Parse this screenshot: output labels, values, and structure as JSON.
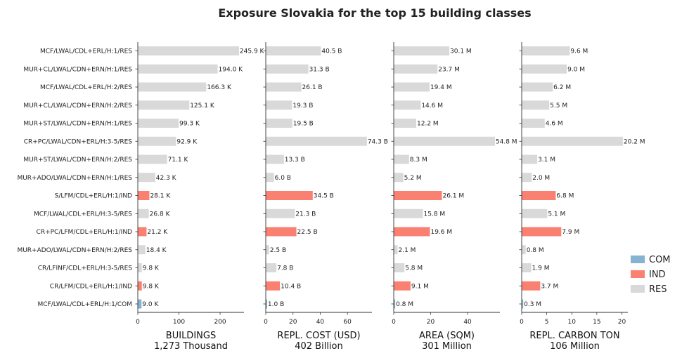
{
  "chart_data": {
    "type": "bar",
    "orientation": "horizontal",
    "title": "Exposure Slovakia for the top 15 building classes",
    "categories": [
      "MCF/LWAL/CDL+ERL/H:1/RES",
      "MUR+CL/LWAL/CDN+ERN/H:1/RES",
      "MCF/LWAL/CDL+ERL/H:2/RES",
      "MUR+CL/LWAL/CDN+ERN/H:2/RES",
      "MUR+ST/LWAL/CDN+ERN/H:1/RES",
      "CR+PC/LWAL/CDN+ERL/H:3-5/RES",
      "MUR+ST/LWAL/CDN+ERN/H:2/RES",
      "MUR+ADO/LWAL/CDN+ERN/H:1/RES",
      "S/LFM/CDL+ERL/H:1/IND",
      "MCF/LWAL/CDL+ERL/H:3-5/RES",
      "CR+PC/LFM/CDL+ERL/H:1/IND",
      "MUR+ADO/LWAL/CDN+ERN/H:2/RES",
      "CR/LFINF/CDL+ERL/H:3-5/RES",
      "CR/LFM/CDL+ERL/H:1/IND",
      "MCF/LWAL/CDL+ERL/H:1/COM"
    ],
    "occupancy": [
      "RES",
      "RES",
      "RES",
      "RES",
      "RES",
      "RES",
      "RES",
      "RES",
      "IND",
      "RES",
      "IND",
      "RES",
      "RES",
      "IND",
      "COM"
    ],
    "legend": {
      "placement": "lower-right",
      "entries": [
        {
          "name": "COM",
          "color": "#86b3d1"
        },
        {
          "name": "IND",
          "color": "#fa8072"
        },
        {
          "name": "RES",
          "color": "#d9d9d9"
        }
      ]
    },
    "panels": [
      {
        "xlabel": "BUILDINGS",
        "total": "1,273 Thousand",
        "xlim": [
          0,
          258
        ],
        "ticks": [
          0,
          100,
          200
        ],
        "values": [
          245.9,
          194.0,
          166.3,
          125.1,
          99.3,
          92.9,
          71.1,
          42.3,
          28.1,
          26.8,
          21.2,
          18.4,
          9.8,
          9.8,
          9.0
        ],
        "labels": [
          "245.9 K",
          "194.0 K",
          "166.3 K",
          "125.1 K",
          "99.3 K",
          "92.9 K",
          "71.1 K",
          "42.3 K",
          "28.1 K",
          "26.8 K",
          "21.2 K",
          "18.4 K",
          "9.8 K",
          "9.8 K",
          "9.0 K"
        ]
      },
      {
        "xlabel": "REPL. COST (USD)",
        "total": "402 Billion",
        "xlim": [
          0,
          78
        ],
        "ticks": [
          0,
          20,
          40,
          60
        ],
        "values": [
          40.5,
          31.3,
          26.1,
          19.3,
          19.5,
          74.3,
          13.3,
          6.0,
          34.5,
          21.3,
          22.5,
          2.5,
          7.8,
          10.4,
          1.0
        ],
        "labels": [
          "40.5 B",
          "31.3 B",
          "26.1 B",
          "19.3 B",
          "19.5 B",
          "74.3 B",
          "13.3 B",
          "6.0 B",
          "34.5 B",
          "21.3 B",
          "22.5 B",
          "2.5 B",
          "7.8 B",
          "10.4 B",
          "1.0 B"
        ]
      },
      {
        "xlabel": "AREA (SQM)",
        "total": "301 Million",
        "xlim": [
          0,
          57.5
        ],
        "ticks": [
          0,
          20,
          40
        ],
        "values": [
          30.1,
          23.7,
          19.4,
          14.6,
          12.2,
          54.8,
          8.3,
          5.2,
          26.1,
          15.8,
          19.6,
          2.1,
          5.8,
          9.1,
          0.8
        ],
        "labels": [
          "30.1 M",
          "23.7 M",
          "19.4 M",
          "14.6 M",
          "12.2 M",
          "54.8 M",
          "8.3 M",
          "5.2 M",
          "26.1 M",
          "15.8 M",
          "19.6 M",
          "2.1 M",
          "5.8 M",
          "9.1 M",
          "0.8 M"
        ]
      },
      {
        "xlabel": "REPL. CARBON TON",
        "total": "106 Million",
        "xlim": [
          0,
          21.2
        ],
        "ticks": [
          0,
          5,
          10,
          15,
          20
        ],
        "values": [
          9.6,
          9.0,
          6.2,
          5.5,
          4.6,
          20.2,
          3.1,
          2.0,
          6.8,
          5.1,
          7.9,
          0.8,
          1.9,
          3.7,
          0.3
        ],
        "labels": [
          "9.6 M",
          "9.0 M",
          "6.2 M",
          "5.5 M",
          "4.6 M",
          "20.2 M",
          "3.1 M",
          "2.0 M",
          "6.8 M",
          "5.1 M",
          "7.9 M",
          "0.8 M",
          "1.9 M",
          "3.7 M",
          "0.3 M"
        ]
      }
    ]
  }
}
